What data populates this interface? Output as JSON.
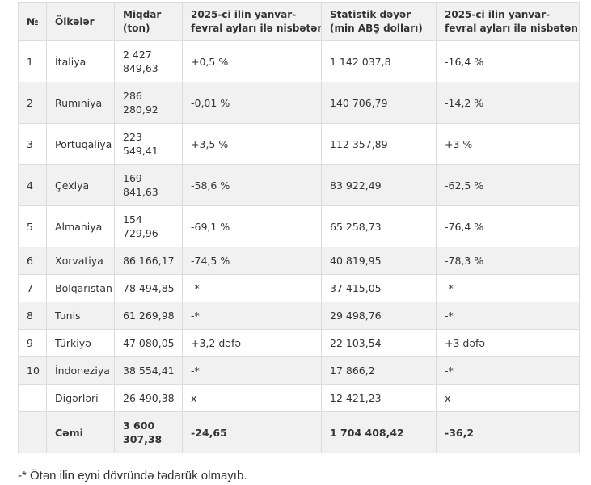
{
  "colors": {
    "header_bg": "#f1f1f2",
    "stripe_bg": "#f1f1f2",
    "row_bg": "#ffffff",
    "border": "#dcdcde",
    "text": "#333333"
  },
  "table": {
    "headers": [
      {
        "key": "no",
        "label": "№"
      },
      {
        "key": "country",
        "label": "Ölkələr"
      },
      {
        "key": "quantity",
        "label": "Miqdar\n(ton)"
      },
      {
        "key": "quantity-change",
        "label": "2025-ci ilin yanvar-\nfevral ayları ilə nisbətən"
      },
      {
        "key": "value",
        "label": "Statistik dəyər\n(min ABŞ dolları)"
      },
      {
        "key": "value-change",
        "label": "2025-ci ilin yanvar-\nfevral ayları ilə nisbətən"
      }
    ],
    "rows": [
      [
        "1",
        "İtaliya",
        "2 427\n849,63",
        "+0,5 %",
        "1 142 037,8",
        "-16,4 %"
      ],
      [
        "2",
        "Rumıniya",
        "286\n280,92",
        "-0,01 %",
        "140 706,79",
        "-14,2 %"
      ],
      [
        "3",
        "Portuqaliya",
        "223\n549,41",
        "+3,5 %",
        "112 357,89",
        "+3 %"
      ],
      [
        "4",
        "Çexiya",
        "169\n841,63",
        "-58,6 %",
        "83 922,49",
        "-62,5 %"
      ],
      [
        "5",
        "Almaniya",
        "154\n729,96",
        "-69,1 %",
        "65 258,73",
        "-76,4 %"
      ],
      [
        "6",
        "Xorvatiya",
        "86 166,17",
        "-74,5 %",
        "40 819,95",
        "-78,3 %"
      ],
      [
        "7",
        "Bolqarıstan",
        "78 494,85",
        "-*",
        "37 415,05",
        "-*"
      ],
      [
        "8",
        "Tunis",
        "61 269,98",
        "-*",
        "29 498,76",
        "-*"
      ],
      [
        "9",
        "Türkiyə",
        "47 080,05",
        "+3,2 dəfə",
        "22 103,54",
        "+3 dəfə"
      ],
      [
        "10",
        "İndoneziya",
        "38 554,41",
        "-*",
        "17 866,2",
        "-*"
      ],
      [
        "",
        "Digərləri",
        "26 490,38",
        "x",
        "12 421,23",
        "x"
      ]
    ],
    "total_row": [
      "",
      "Cəmi",
      "3 600\n307,38",
      "-24,65",
      "1 704 408,42",
      "-36,2"
    ]
  },
  "footnote": "-* Ötən ilin eyni dövründə tədarük olmayıb."
}
